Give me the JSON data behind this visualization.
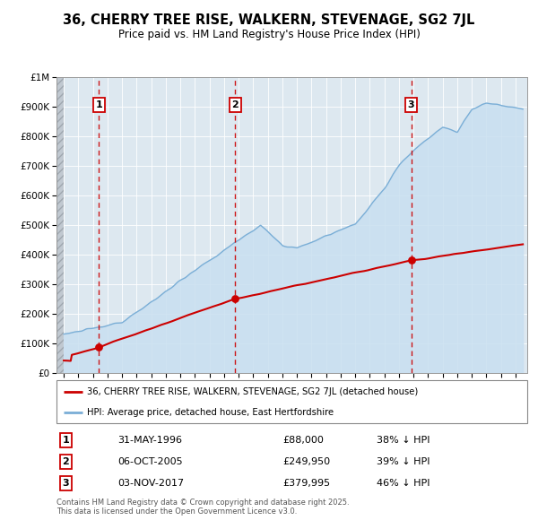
{
  "title_line1": "36, CHERRY TREE RISE, WALKERN, STEVENAGE, SG2 7JL",
  "title_line2": "Price paid vs. HM Land Registry's House Price Index (HPI)",
  "property_label": "36, CHERRY TREE RISE, WALKERN, STEVENAGE, SG2 7JL (detached house)",
  "hpi_label": "HPI: Average price, detached house, East Hertfordshire",
  "transactions": [
    {
      "num": 1,
      "date": "31-MAY-1996",
      "price": 88000,
      "hpi_pct": "38% ↓ HPI",
      "year": 1996.42
    },
    {
      "num": 2,
      "date": "06-OCT-2005",
      "price": 249950,
      "hpi_pct": "39% ↓ HPI",
      "year": 2005.77
    },
    {
      "num": 3,
      "date": "03-NOV-2017",
      "price": 379995,
      "hpi_pct": "46% ↓ HPI",
      "year": 2017.84
    }
  ],
  "copyright_text": "Contains HM Land Registry data © Crown copyright and database right 2025.\nThis data is licensed under the Open Government Licence v3.0.",
  "property_color": "#cc0000",
  "hpi_color": "#7aaed6",
  "hpi_fill_color": "#c8dff0",
  "grid_color": "#cccccc",
  "ylim": [
    0,
    1000000
  ],
  "xlim_start": 1993.5,
  "xlim_end": 2025.8
}
